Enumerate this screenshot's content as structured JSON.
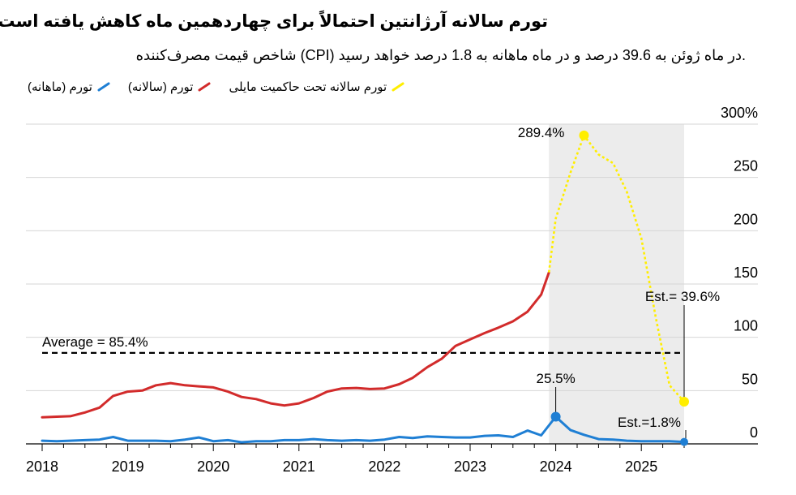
{
  "chart_data": {
    "type": "line",
    "title": "تورم سالانه آرژانتین احتمالاً برای چهاردهمین ماه کاهش یافته است",
    "subtitle": ".در ماه ژوئن به 39.6 درصد و در ماه ماهانه به 1.8 درصد خواهد رسید (CPI) شاخص قیمت مصرف‌کننده",
    "xlim": [
      2018.0,
      2025.75
    ],
    "ylim": [
      0,
      300
    ],
    "x_ticks": [
      2018,
      2019,
      2020,
      2021,
      2022,
      2023,
      2024,
      2025
    ],
    "x_tick_labels": [
      "2018",
      "2019",
      "2020",
      "2021",
      "2022",
      "2023",
      "2024",
      "2025"
    ],
    "y_ticks": [
      0,
      50,
      100,
      150,
      200,
      250,
      300
    ],
    "y_tick_labels": [
      "0",
      "50",
      "100",
      "150",
      "200",
      "250",
      "300%"
    ],
    "grid": "horizontal",
    "legend_position": "top-left",
    "shaded_region": {
      "x": [
        2023.92,
        2025.5
      ]
    },
    "average": {
      "value": 85.4,
      "label": "Average = 85.4%",
      "x": [
        2018.0,
        2025.5
      ]
    },
    "series": [
      {
        "name": "تورم (ماهانه)",
        "color": "#1f7fd4",
        "style": "solid",
        "points": [
          [
            2018.0,
            3.0
          ],
          [
            2018.17,
            2.5
          ],
          [
            2018.33,
            3.0
          ],
          [
            2018.5,
            3.5
          ],
          [
            2018.67,
            4.0
          ],
          [
            2018.83,
            6.5
          ],
          [
            2019.0,
            3.0
          ],
          [
            2019.17,
            3.0
          ],
          [
            2019.33,
            3.0
          ],
          [
            2019.5,
            2.5
          ],
          [
            2019.67,
            4.0
          ],
          [
            2019.83,
            6.0
          ],
          [
            2020.0,
            2.5
          ],
          [
            2020.17,
            3.5
          ],
          [
            2020.33,
            1.5
          ],
          [
            2020.5,
            2.5
          ],
          [
            2020.67,
            2.5
          ],
          [
            2020.83,
            3.5
          ],
          [
            2021.0,
            3.5
          ],
          [
            2021.17,
            4.5
          ],
          [
            2021.33,
            3.5
          ],
          [
            2021.5,
            3.0
          ],
          [
            2021.67,
            3.5
          ],
          [
            2021.83,
            3.0
          ],
          [
            2022.0,
            4.0
          ],
          [
            2022.17,
            6.5
          ],
          [
            2022.33,
            5.5
          ],
          [
            2022.5,
            7.0
          ],
          [
            2022.67,
            6.5
          ],
          [
            2022.83,
            6.0
          ],
          [
            2023.0,
            6.0
          ],
          [
            2023.17,
            7.5
          ],
          [
            2023.33,
            8.0
          ],
          [
            2023.5,
            6.5
          ],
          [
            2023.67,
            12.5
          ],
          [
            2023.83,
            8.0
          ],
          [
            2024.0,
            25.5
          ],
          [
            2024.17,
            13.0
          ],
          [
            2024.33,
            8.5
          ],
          [
            2024.5,
            4.5
          ],
          [
            2024.67,
            4.0
          ],
          [
            2024.83,
            3.0
          ],
          [
            2025.0,
            2.5
          ],
          [
            2025.17,
            2.5
          ],
          [
            2025.33,
            2.5
          ],
          [
            2025.5,
            1.8
          ]
        ]
      },
      {
        "name": "تورم (سالانه)",
        "color": "#d22b2b",
        "style": "solid",
        "points": [
          [
            2018.0,
            25.0
          ],
          [
            2018.17,
            25.5
          ],
          [
            2018.33,
            26.0
          ],
          [
            2018.5,
            29.5
          ],
          [
            2018.67,
            34.0
          ],
          [
            2018.83,
            45.0
          ],
          [
            2019.0,
            49.0
          ],
          [
            2019.17,
            50.0
          ],
          [
            2019.33,
            55.0
          ],
          [
            2019.5,
            57.0
          ],
          [
            2019.67,
            55.0
          ],
          [
            2019.83,
            54.0
          ],
          [
            2020.0,
            53.0
          ],
          [
            2020.17,
            49.0
          ],
          [
            2020.33,
            44.0
          ],
          [
            2020.5,
            42.0
          ],
          [
            2020.67,
            38.0
          ],
          [
            2020.83,
            36.0
          ],
          [
            2021.0,
            38.0
          ],
          [
            2021.17,
            43.0
          ],
          [
            2021.33,
            49.0
          ],
          [
            2021.5,
            52.0
          ],
          [
            2021.67,
            52.5
          ],
          [
            2021.83,
            51.5
          ],
          [
            2022.0,
            52.0
          ],
          [
            2022.17,
            56.0
          ],
          [
            2022.33,
            62.0
          ],
          [
            2022.5,
            72.0
          ],
          [
            2022.67,
            80.0
          ],
          [
            2022.83,
            92.0
          ],
          [
            2023.0,
            98.0
          ],
          [
            2023.17,
            104.0
          ],
          [
            2023.33,
            109.0
          ],
          [
            2023.5,
            115.0
          ],
          [
            2023.67,
            124.0
          ],
          [
            2023.83,
            140.0
          ],
          [
            2023.92,
            160.9
          ]
        ]
      },
      {
        "name": "تورم سالانه تحت حاکمیت مایلی",
        "color": "#ffee00",
        "style": "dotted",
        "points": [
          [
            2023.92,
            160.9
          ],
          [
            2024.0,
            211.4
          ],
          [
            2024.17,
            254.2
          ],
          [
            2024.33,
            289.4
          ],
          [
            2024.5,
            271.5
          ],
          [
            2024.67,
            263.4
          ],
          [
            2024.83,
            236.7
          ],
          [
            2025.0,
            193.0
          ],
          [
            2025.17,
            117.8
          ],
          [
            2025.33,
            55.0
          ],
          [
            2025.5,
            39.6
          ]
        ]
      }
    ],
    "annotations": [
      {
        "label": "289.4%",
        "x": 2024.33,
        "y": 289.4
      },
      {
        "label": "Est.= 39.6%",
        "x": 2025.5,
        "y": 39.6
      },
      {
        "label": "25.5%",
        "x": 2024.0,
        "y": 25.5
      },
      {
        "label": "Est.=1.8%",
        "x": 2025.5,
        "y": 1.8
      }
    ]
  }
}
